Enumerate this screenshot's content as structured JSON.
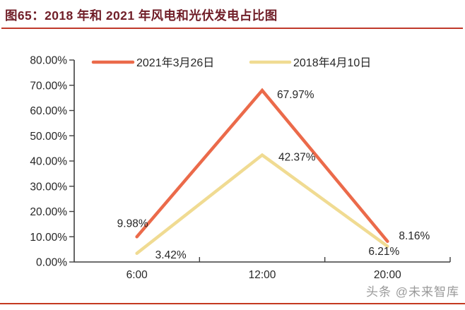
{
  "page": {
    "title": "图65：2018 年和 2021 年风电和光伏发电占比图",
    "watermark": "头条 @未来智库",
    "title_color": "#701E28",
    "rule_color": "#C0392B"
  },
  "chart_data": {
    "type": "line",
    "title": "2018 年和 2021 年风电和光伏发电占比图",
    "categories": [
      "6:00",
      "12:00",
      "20:00"
    ],
    "series": [
      {
        "name": "2021年3月26日",
        "color": "#EB6A4A",
        "values": [
          9.98,
          67.97,
          8.16
        ],
        "point_labels": [
          "9.98%",
          "67.97%",
          "8.16%"
        ]
      },
      {
        "name": "2018年4月10日",
        "color": "#F0DB92",
        "values": [
          3.42,
          42.37,
          6.21
        ],
        "point_labels": [
          "3.42%",
          "42.37%",
          "6.21%"
        ]
      }
    ],
    "xlabel": "",
    "ylabel": "",
    "ylim": [
      0,
      80
    ],
    "y_tick_labels": [
      "0.00%",
      "10.00%",
      "20.00%",
      "30.00%",
      "40.00%",
      "50.00%",
      "60.00%",
      "70.00%",
      "80.00%"
    ],
    "grid": false,
    "legend_position": "top",
    "axis_color": "#3F3F3F",
    "text_color": "#262626",
    "label_offsets": [
      [
        [
          -28,
          -14
        ],
        [
          21,
          11
        ],
        [
          16,
          -3
        ]
      ],
      [
        [
          26,
          7
        ],
        [
          23,
          8
        ],
        [
          -27,
          12
        ]
      ]
    ]
  }
}
